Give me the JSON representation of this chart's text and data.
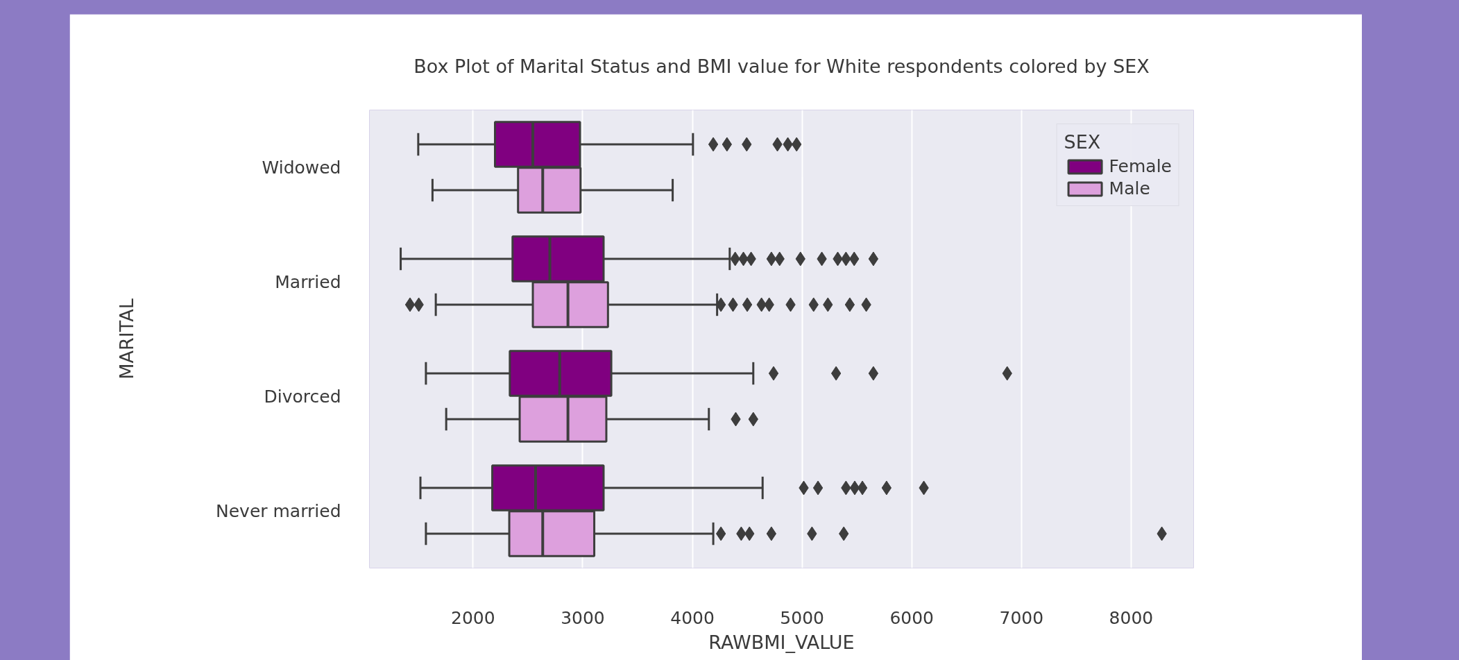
{
  "chart_data": {
    "type": "box",
    "orientation": "horizontal",
    "title": "Box Plot of Marital Status and BMI value for White respondents colored by SEX",
    "xlabel": "RAWBMI_VALUE",
    "ylabel": "MARITAL",
    "categories": [
      "Widowed",
      "Married",
      "Divorced",
      "Never married"
    ],
    "series": [
      {
        "name": "Female",
        "color": "#800080",
        "boxes": [
          {
            "low": 1500,
            "q1": 2200,
            "median": 2545,
            "q3": 2975,
            "high": 4005,
            "outliers": [
              4190,
              4315,
              4495,
              4775,
              4870,
              4950
            ]
          },
          {
            "low": 1340,
            "q1": 2360,
            "median": 2700,
            "q3": 3190,
            "high": 4340,
            "outliers": [
              4390,
              4465,
              4535,
              4720,
              4795,
              4985,
              5180,
              5325,
              5400,
              5475,
              5650
            ]
          },
          {
            "low": 1570,
            "q1": 2335,
            "median": 2790,
            "q3": 3260,
            "high": 4555,
            "outliers": [
              4740,
              5310,
              5650,
              6870
            ]
          },
          {
            "low": 1520,
            "q1": 2175,
            "median": 2570,
            "q3": 3190,
            "high": 4640,
            "outliers": [
              5015,
              5145,
              5400,
              5480,
              5550,
              5770,
              6110
            ]
          }
        ]
      },
      {
        "name": "Male",
        "color": "#dda0dd",
        "boxes": [
          {
            "low": 1630,
            "q1": 2410,
            "median": 2635,
            "q3": 2980,
            "high": 3820
          },
          {
            "low": 1660,
            "q1": 2545,
            "median": 2865,
            "q3": 3230,
            "high": 4225,
            "outliers": [
              1425,
              1505,
              4260,
              4370,
              4500,
              4630,
              4700,
              4895,
              5105,
              5235,
              5435,
              5585
            ]
          },
          {
            "low": 1755,
            "q1": 2425,
            "median": 2865,
            "q3": 3215,
            "high": 4150,
            "outliers": [
              4395,
              4555
            ]
          },
          {
            "low": 1570,
            "q1": 2330,
            "median": 2635,
            "q3": 3105,
            "high": 4190,
            "outliers": [
              4260,
              4445,
              4520,
              4720,
              5090,
              5380,
              8280
            ]
          }
        ]
      }
    ],
    "xlim": [
      1055,
      8570
    ],
    "xticks": [
      2000,
      3000,
      4000,
      5000,
      6000,
      7000,
      8000
    ],
    "grid": "x",
    "legend": "top right",
    "legend_title": "SEX",
    "marker": "diamond"
  }
}
